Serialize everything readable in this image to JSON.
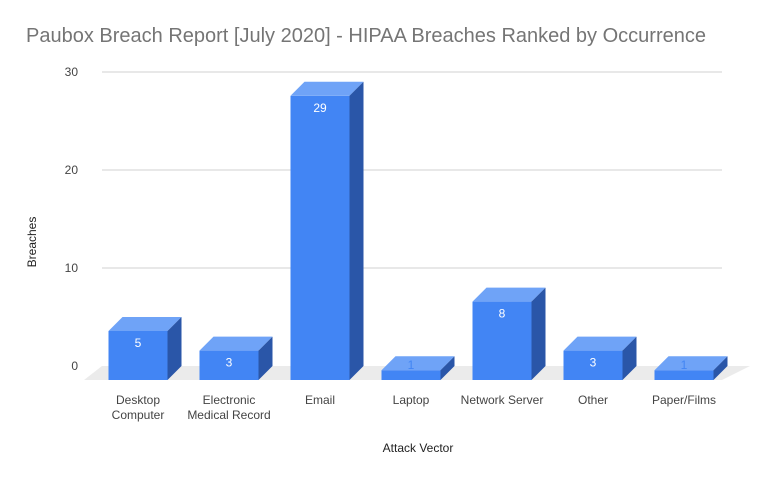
{
  "chart_data": {
    "type": "bar",
    "style": "3d",
    "title": "Paubox Breach Report [July 2020] - HIPAA Breaches Ranked by Occurrence",
    "xlabel": "Attack Vector",
    "ylabel": "Breaches",
    "ylim": [
      0,
      30
    ],
    "yticks": [
      0,
      10,
      20,
      30
    ],
    "grid": true,
    "legend": "none",
    "categories": [
      [
        "Desktop",
        "Computer"
      ],
      [
        "Electronic",
        "Medical Record"
      ],
      [
        "Email"
      ],
      [
        "Laptop"
      ],
      [
        "Network Server"
      ],
      [
        "Other"
      ],
      [
        "Paper/Films"
      ]
    ],
    "values": [
      5,
      3,
      29,
      1,
      8,
      3,
      1
    ],
    "colors": {
      "front": "#4285f4",
      "top": "#6fa3f7",
      "side": "#2a56a8",
      "floor": "#ebebeb",
      "grid": "#d0d0d0",
      "label_inside": "#ffffff",
      "label_outside": "#4285f4"
    }
  }
}
